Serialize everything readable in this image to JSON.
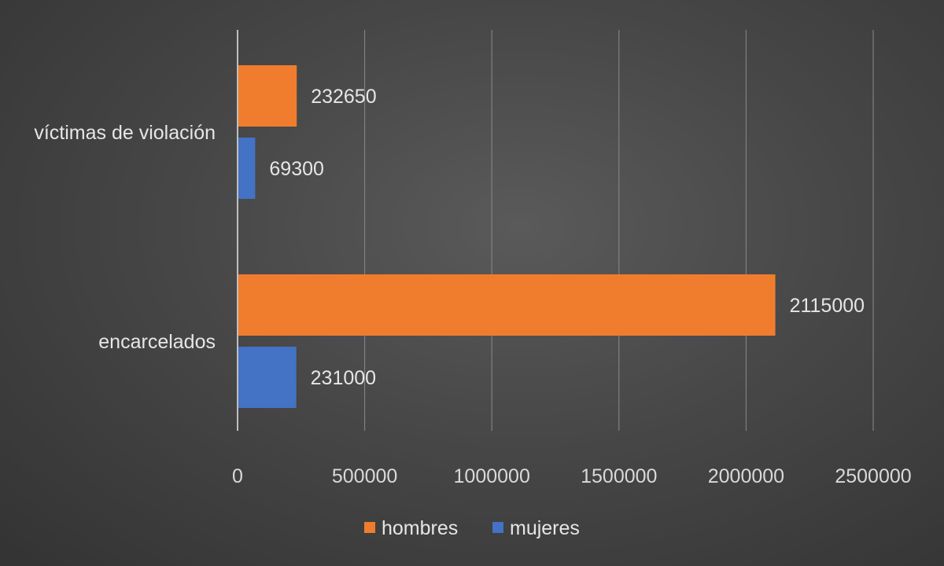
{
  "chart_data": {
    "type": "bar",
    "orientation": "horizontal",
    "categories": [
      "víctimas de violación",
      "encarcelados"
    ],
    "series": [
      {
        "name": "hombres",
        "values": [
          232650,
          2115000
        ],
        "color": "#f07d2e"
      },
      {
        "name": "mujeres",
        "values": [
          69300,
          231000
        ],
        "color": "#4472c4"
      }
    ],
    "xlim": [
      0,
      2500000
    ],
    "xticks": [
      0,
      500000,
      1000000,
      1500000,
      2000000,
      2500000
    ],
    "xtick_labels": [
      "0",
      "500000",
      "1000000",
      "1500000",
      "2000000",
      "2500000"
    ],
    "data_labels": true,
    "grid": "vertical",
    "legend_position": "bottom",
    "title": "",
    "xlabel": "",
    "ylabel": ""
  }
}
